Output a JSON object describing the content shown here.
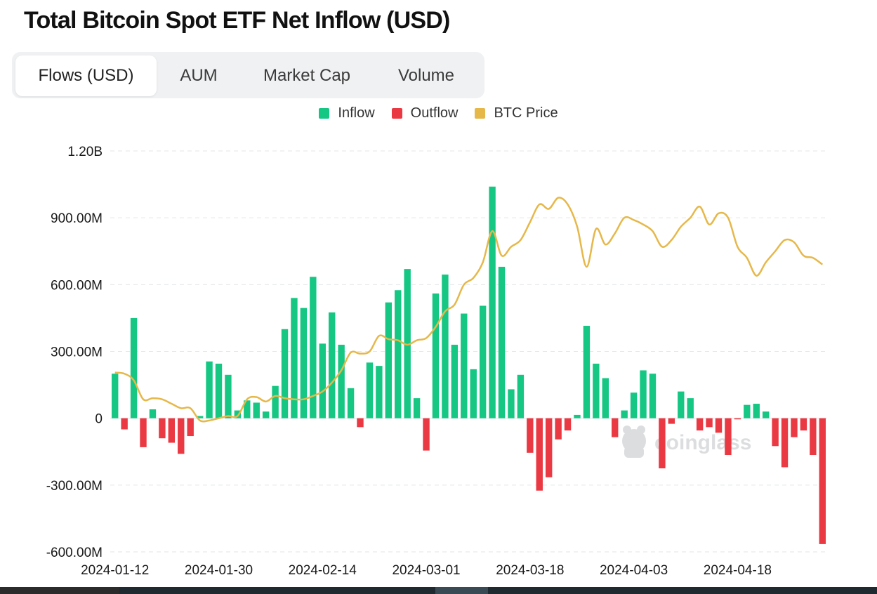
{
  "title": "Total Bitcoin Spot ETF Net Inflow (USD)",
  "tabs": [
    {
      "label": "Flows (USD)",
      "active": true
    },
    {
      "label": "AUM",
      "active": false
    },
    {
      "label": "Market Cap",
      "active": false
    },
    {
      "label": "Volume",
      "active": false
    }
  ],
  "legend": [
    {
      "label": "Inflow",
      "color": "#16c784"
    },
    {
      "label": "Outflow",
      "color": "#ea3943"
    },
    {
      "label": "BTC Price",
      "color": "#e6b84a"
    }
  ],
  "watermark": "coinglass",
  "chart_data": {
    "type": "bar",
    "title": "Total Bitcoin Spot ETF Net Inflow (USD)",
    "ylim": [
      -600000000,
      1200000000
    ],
    "y_ticks": [
      {
        "value": 1200000000,
        "label": "1.20B"
      },
      {
        "value": 900000000,
        "label": "900.00M"
      },
      {
        "value": 600000000,
        "label": "600.00M"
      },
      {
        "value": 300000000,
        "label": "300.00M"
      },
      {
        "value": 0,
        "label": "0"
      },
      {
        "value": -300000000,
        "label": "-300.00M"
      },
      {
        "value": -600000000,
        "label": "-600.00M"
      }
    ],
    "x_tick_labels": [
      {
        "index": 0,
        "label": "2024-01-12"
      },
      {
        "index": 11,
        "label": "2024-01-30"
      },
      {
        "index": 22,
        "label": "2024-02-14"
      },
      {
        "index": 33,
        "label": "2024-03-01"
      },
      {
        "index": 44,
        "label": "2024-03-18"
      },
      {
        "index": 55,
        "label": "2024-04-03"
      },
      {
        "index": 66,
        "label": "2024-04-18"
      }
    ],
    "grid": true,
    "legend_position": "top-center",
    "series": [
      {
        "name": "Net Inflow",
        "colors": {
          "positive": "#16c784",
          "negative": "#ea3943"
        },
        "values": [
          200000000,
          -50000000,
          450000000,
          -130000000,
          40000000,
          -90000000,
          -110000000,
          -160000000,
          -80000000,
          10000000,
          255000000,
          245000000,
          195000000,
          35000000,
          80000000,
          70000000,
          30000000,
          145000000,
          400000000,
          540000000,
          495000000,
          635000000,
          335000000,
          475000000,
          330000000,
          135000000,
          -40000000,
          250000000,
          235000000,
          520000000,
          575000000,
          670000000,
          90000000,
          -145000000,
          560000000,
          645000000,
          330000000,
          470000000,
          220000000,
          505000000,
          1040000000,
          680000000,
          130000000,
          195000000,
          -155000000,
          -325000000,
          -265000000,
          -95000000,
          -55000000,
          15000000,
          415000000,
          245000000,
          180000000,
          -85000000,
          35000000,
          115000000,
          215000000,
          200000000,
          -225000000,
          -25000000,
          120000000,
          90000000,
          -55000000,
          -40000000,
          -65000000,
          -165000000,
          -5000000,
          60000000,
          65000000,
          30000000,
          -125000000,
          -220000000,
          -85000000,
          -55000000,
          -165000000,
          -565000000
        ]
      },
      {
        "name": "BTC Price",
        "type": "line",
        "color": "#e6b84a",
        "values_on_flow_axis": [
          205000000,
          200000000,
          170000000,
          85000000,
          90000000,
          85000000,
          65000000,
          45000000,
          45000000,
          -10000000,
          -10000000,
          0,
          10000000,
          10000000,
          85000000,
          95000000,
          75000000,
          100000000,
          90000000,
          85000000,
          85000000,
          100000000,
          120000000,
          160000000,
          215000000,
          295000000,
          290000000,
          300000000,
          370000000,
          355000000,
          350000000,
          330000000,
          350000000,
          360000000,
          410000000,
          480000000,
          510000000,
          600000000,
          630000000,
          700000000,
          840000000,
          730000000,
          770000000,
          800000000,
          880000000,
          960000000,
          940000000,
          990000000,
          960000000,
          860000000,
          680000000,
          850000000,
          780000000,
          830000000,
          900000000,
          890000000,
          870000000,
          840000000,
          770000000,
          800000000,
          860000000,
          900000000,
          950000000,
          870000000,
          920000000,
          900000000,
          770000000,
          720000000,
          640000000,
          700000000,
          750000000,
          800000000,
          790000000,
          730000000,
          720000000,
          690000000
        ]
      }
    ]
  }
}
